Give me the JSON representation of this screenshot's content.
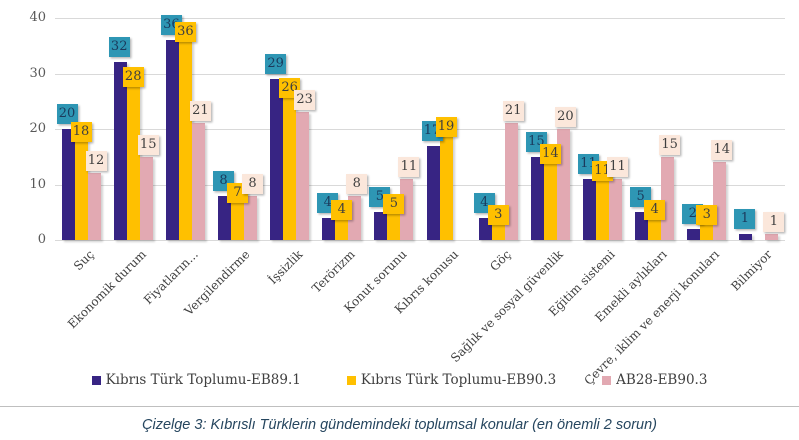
{
  "figure": {
    "caption": "Çizelge 3: Kıbrıslı Türklerin gündemindeki toplumsal konular (en önemli 2 sorun)"
  },
  "chart_data": {
    "type": "bar",
    "title": "",
    "xlabel": "",
    "ylabel": "",
    "ylim": [
      0,
      40
    ],
    "yticks": [
      0,
      10,
      20,
      30,
      40
    ],
    "grid": true,
    "legend_position": "bottom",
    "categories": [
      "Suç",
      "Ekonomik durum",
      "Fiyatların...",
      "Vergilendirme",
      "İşsizlik",
      "Terörizm",
      "Konut sorunu",
      "Kıbrıs konusu",
      "Göç",
      "Sağlık ve sosyal güvenlik",
      "Eğitim sistemi",
      "Emekli aylıkları",
      "Çevre, iklim ve enerji konuları",
      "Bilmiyor"
    ],
    "series": [
      {
        "name": "Kıbrıs Türk Toplumu-EB89.1",
        "bar_color": "#372483",
        "label_bg": "#2e96b4",
        "label_text_color": "#1b3a5c",
        "values": [
          20,
          32,
          36,
          8,
          29,
          4,
          5,
          17,
          4,
          15,
          11,
          5,
          2,
          1
        ]
      },
      {
        "name": "Kıbrıs Türk Toplumu-EB90.3",
        "bar_color": "#ffc000",
        "label_bg": "#ffc000",
        "label_text_color": "#3f3f3f",
        "values": [
          18,
          28,
          36,
          7,
          26,
          4,
          5,
          19,
          3,
          14,
          11,
          4,
          3,
          null
        ]
      },
      {
        "name": "AB28-EB90.3",
        "bar_color": "#e2a9b2",
        "label_bg": "#fbe7db",
        "label_text_color": "#3f3f3f",
        "values": [
          12,
          15,
          21,
          8,
          23,
          8,
          11,
          null,
          21,
          20,
          11,
          15,
          14,
          1
        ]
      }
    ]
  }
}
